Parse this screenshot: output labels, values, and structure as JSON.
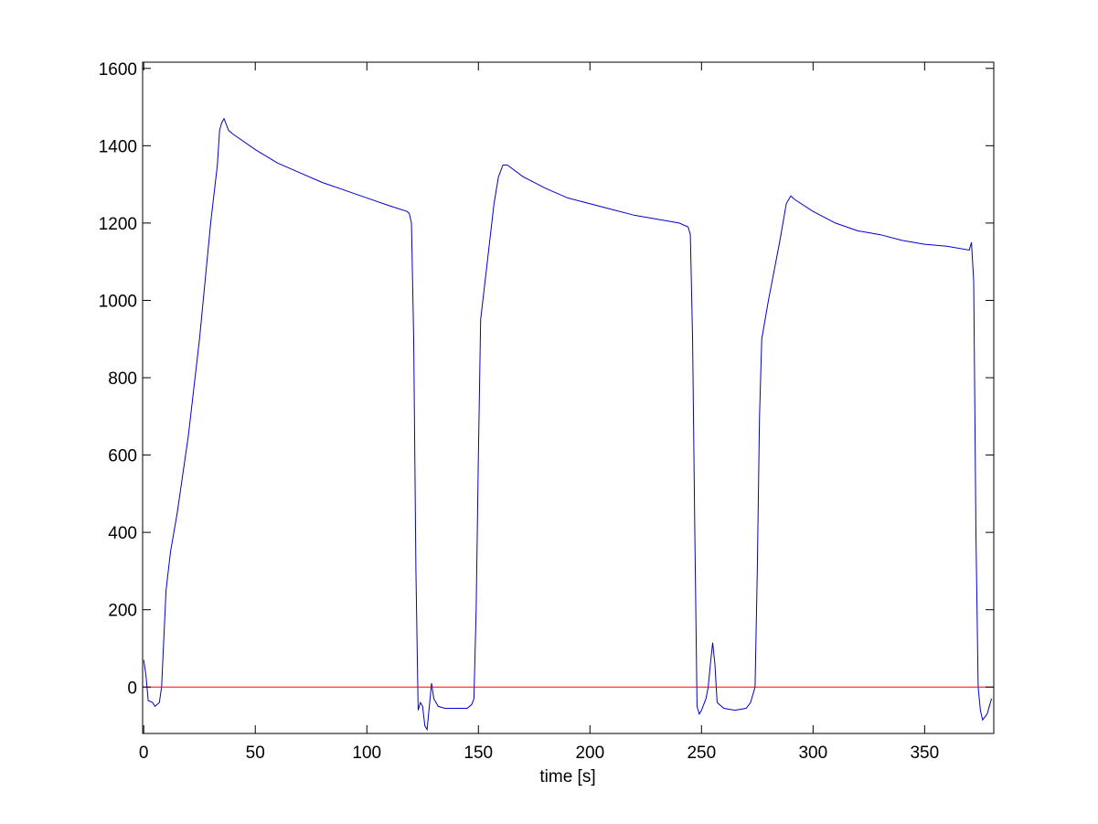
{
  "chart_data": {
    "type": "line",
    "xlabel": "time [s]",
    "xlim": [
      -0.5,
      381
    ],
    "ylim": [
      -120,
      1616
    ],
    "xticks": [
      0,
      50,
      100,
      150,
      200,
      250,
      300,
      350
    ],
    "yticks": [
      0,
      200,
      400,
      600,
      800,
      1000,
      1200,
      1400,
      1600
    ],
    "series": [
      {
        "color": "#0000cc",
        "x": [
          0,
          1,
          2,
          4,
          5,
          7,
          8,
          10,
          12,
          15,
          20,
          25,
          30,
          33,
          34,
          35,
          36,
          38,
          40,
          50,
          60,
          70,
          80,
          90,
          100,
          110,
          118,
          119,
          120,
          121,
          122,
          123,
          124,
          125,
          126,
          127,
          128,
          129,
          130,
          132,
          135,
          140,
          145,
          147,
          148,
          149,
          150,
          151,
          153,
          155,
          157,
          159,
          161,
          163,
          170,
          180,
          190,
          200,
          210,
          220,
          230,
          240,
          244,
          245,
          246,
          247,
          248,
          249,
          250,
          252,
          253,
          254,
          255,
          256,
          257,
          260,
          265,
          270,
          272,
          274,
          275,
          276,
          277,
          280,
          285,
          288,
          290,
          292,
          300,
          310,
          320,
          330,
          340,
          350,
          360,
          370,
          371,
          372,
          373,
          374,
          375,
          376,
          378,
          380
        ],
        "values": [
          70,
          30,
          -35,
          -40,
          -50,
          -40,
          0,
          250,
          350,
          450,
          650,
          900,
          1200,
          1350,
          1440,
          1460,
          1470,
          1440,
          1430,
          1390,
          1355,
          1330,
          1305,
          1285,
          1265,
          1245,
          1230,
          1225,
          1200,
          900,
          300,
          -60,
          -40,
          -50,
          -100,
          -110,
          -50,
          10,
          -30,
          -50,
          -55,
          -55,
          -55,
          -45,
          -30,
          200,
          600,
          950,
          1050,
          1150,
          1250,
          1320,
          1350,
          1350,
          1320,
          1290,
          1265,
          1250,
          1235,
          1220,
          1210,
          1200,
          1190,
          1170,
          900,
          400,
          -50,
          -70,
          -60,
          -30,
          0,
          60,
          115,
          60,
          -40,
          -55,
          -60,
          -55,
          -40,
          0,
          300,
          700,
          900,
          1000,
          1150,
          1250,
          1270,
          1260,
          1230,
          1200,
          1180,
          1170,
          1155,
          1145,
          1140,
          1130,
          1150,
          1050,
          400,
          0,
          -60,
          -85,
          -70,
          -30
        ]
      },
      {
        "color": "#ff0000",
        "x": [
          -0.5,
          381
        ],
        "values": [
          0,
          0
        ]
      }
    ]
  }
}
